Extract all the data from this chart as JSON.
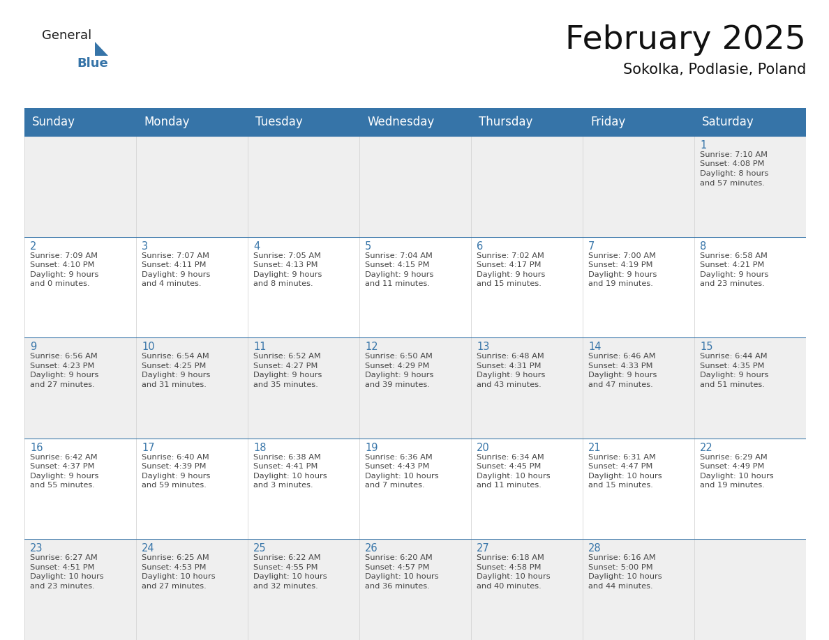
{
  "title": "February 2025",
  "subtitle": "Sokolka, Podlasie, Poland",
  "header_color": "#3674a8",
  "header_text_color": "#ffffff",
  "cell_bg_row0": "#efefef",
  "cell_bg_row1": "#ffffff",
  "border_color": "#3674a8",
  "text_color": "#444444",
  "day_num_color": "#3674a8",
  "day_headers": [
    "Sunday",
    "Monday",
    "Tuesday",
    "Wednesday",
    "Thursday",
    "Friday",
    "Saturday"
  ],
  "title_fontsize": 34,
  "subtitle_fontsize": 15,
  "header_fontsize": 12,
  "day_num_fontsize": 10.5,
  "info_fontsize": 8.2,
  "logo_general_fontsize": 13,
  "logo_blue_fontsize": 13,
  "calendar_data": [
    [
      null,
      null,
      null,
      null,
      null,
      null,
      {
        "day": "1",
        "sunrise": "7:10 AM",
        "sunset": "4:08 PM",
        "daylight": "8 hours\nand 57 minutes."
      }
    ],
    [
      {
        "day": "2",
        "sunrise": "7:09 AM",
        "sunset": "4:10 PM",
        "daylight": "9 hours\nand 0 minutes."
      },
      {
        "day": "3",
        "sunrise": "7:07 AM",
        "sunset": "4:11 PM",
        "daylight": "9 hours\nand 4 minutes."
      },
      {
        "day": "4",
        "sunrise": "7:05 AM",
        "sunset": "4:13 PM",
        "daylight": "9 hours\nand 8 minutes."
      },
      {
        "day": "5",
        "sunrise": "7:04 AM",
        "sunset": "4:15 PM",
        "daylight": "9 hours\nand 11 minutes."
      },
      {
        "day": "6",
        "sunrise": "7:02 AM",
        "sunset": "4:17 PM",
        "daylight": "9 hours\nand 15 minutes."
      },
      {
        "day": "7",
        "sunrise": "7:00 AM",
        "sunset": "4:19 PM",
        "daylight": "9 hours\nand 19 minutes."
      },
      {
        "day": "8",
        "sunrise": "6:58 AM",
        "sunset": "4:21 PM",
        "daylight": "9 hours\nand 23 minutes."
      }
    ],
    [
      {
        "day": "9",
        "sunrise": "6:56 AM",
        "sunset": "4:23 PM",
        "daylight": "9 hours\nand 27 minutes."
      },
      {
        "day": "10",
        "sunrise": "6:54 AM",
        "sunset": "4:25 PM",
        "daylight": "9 hours\nand 31 minutes."
      },
      {
        "day": "11",
        "sunrise": "6:52 AM",
        "sunset": "4:27 PM",
        "daylight": "9 hours\nand 35 minutes."
      },
      {
        "day": "12",
        "sunrise": "6:50 AM",
        "sunset": "4:29 PM",
        "daylight": "9 hours\nand 39 minutes."
      },
      {
        "day": "13",
        "sunrise": "6:48 AM",
        "sunset": "4:31 PM",
        "daylight": "9 hours\nand 43 minutes."
      },
      {
        "day": "14",
        "sunrise": "6:46 AM",
        "sunset": "4:33 PM",
        "daylight": "9 hours\nand 47 minutes."
      },
      {
        "day": "15",
        "sunrise": "6:44 AM",
        "sunset": "4:35 PM",
        "daylight": "9 hours\nand 51 minutes."
      }
    ],
    [
      {
        "day": "16",
        "sunrise": "6:42 AM",
        "sunset": "4:37 PM",
        "daylight": "9 hours\nand 55 minutes."
      },
      {
        "day": "17",
        "sunrise": "6:40 AM",
        "sunset": "4:39 PM",
        "daylight": "9 hours\nand 59 minutes."
      },
      {
        "day": "18",
        "sunrise": "6:38 AM",
        "sunset": "4:41 PM",
        "daylight": "10 hours\nand 3 minutes."
      },
      {
        "day": "19",
        "sunrise": "6:36 AM",
        "sunset": "4:43 PM",
        "daylight": "10 hours\nand 7 minutes."
      },
      {
        "day": "20",
        "sunrise": "6:34 AM",
        "sunset": "4:45 PM",
        "daylight": "10 hours\nand 11 minutes."
      },
      {
        "day": "21",
        "sunrise": "6:31 AM",
        "sunset": "4:47 PM",
        "daylight": "10 hours\nand 15 minutes."
      },
      {
        "day": "22",
        "sunrise": "6:29 AM",
        "sunset": "4:49 PM",
        "daylight": "10 hours\nand 19 minutes."
      }
    ],
    [
      {
        "day": "23",
        "sunrise": "6:27 AM",
        "sunset": "4:51 PM",
        "daylight": "10 hours\nand 23 minutes."
      },
      {
        "day": "24",
        "sunrise": "6:25 AM",
        "sunset": "4:53 PM",
        "daylight": "10 hours\nand 27 minutes."
      },
      {
        "day": "25",
        "sunrise": "6:22 AM",
        "sunset": "4:55 PM",
        "daylight": "10 hours\nand 32 minutes."
      },
      {
        "day": "26",
        "sunrise": "6:20 AM",
        "sunset": "4:57 PM",
        "daylight": "10 hours\nand 36 minutes."
      },
      {
        "day": "27",
        "sunrise": "6:18 AM",
        "sunset": "4:58 PM",
        "daylight": "10 hours\nand 40 minutes."
      },
      {
        "day": "28",
        "sunrise": "6:16 AM",
        "sunset": "5:00 PM",
        "daylight": "10 hours\nand 44 minutes."
      },
      null
    ]
  ]
}
